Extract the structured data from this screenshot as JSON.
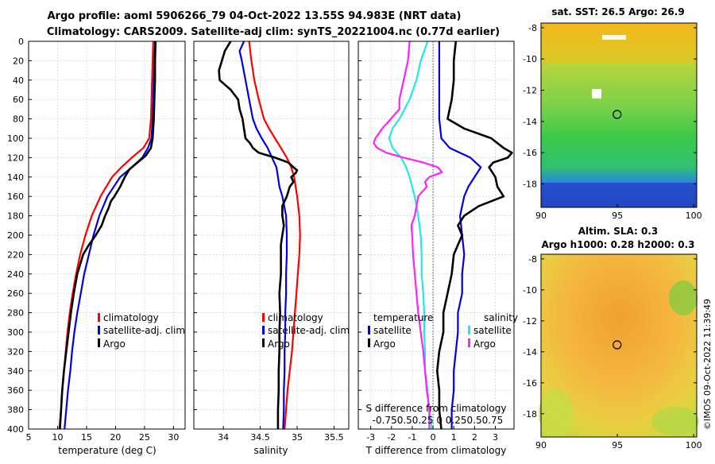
{
  "title": {
    "line1": "Argo profile: aoml 5906266_79 04-Oct-2022 13.55S 94.983E (NRT data)",
    "line2": "Climatology: CARS2009. Satellite-adj clim: synTS_20221004.nc (0.77d earlier)"
  },
  "colors": {
    "climatology": "#ff0000",
    "satellite": "#0000e0",
    "argo": "#000000",
    "t_sat_diff": "#22e8e8",
    "s_sat_diff": "#ee22ee",
    "s_argo_diff": "#ff22ff"
  },
  "depth_ticks": [
    "0",
    "20",
    "40",
    "60",
    "80",
    "100",
    "120",
    "140",
    "160",
    "180",
    "200",
    "220",
    "240",
    "260",
    "280",
    "300",
    "320",
    "340",
    "360",
    "380",
    "400"
  ],
  "chart_data": [
    {
      "id": "temperature",
      "type": "line",
      "xlabel": "temperature (deg C)",
      "ylabel": "depth",
      "xlim": [
        5,
        32
      ],
      "ylim": [
        400,
        0
      ],
      "xticks": [
        "5",
        "10",
        "15",
        "20",
        "25",
        "30"
      ],
      "xtick_values": [
        5,
        10,
        15,
        20,
        25,
        30
      ],
      "grid": true,
      "legend": [
        "climatology",
        "satellite-adj. clim",
        "Argo"
      ],
      "series": [
        {
          "name": "climatology",
          "color": "#ff0000",
          "depth": [
            0,
            20,
            40,
            60,
            80,
            100,
            110,
            120,
            130,
            140,
            160,
            180,
            200,
            220,
            240,
            260,
            280,
            300,
            320,
            340,
            360,
            380,
            400
          ],
          "values": [
            26.5,
            26.4,
            26.3,
            26.2,
            26.1,
            25.8,
            24.8,
            22.8,
            21.0,
            19.4,
            17.4,
            15.9,
            14.8,
            13.9,
            13.2,
            12.6,
            12.1,
            11.7,
            11.4,
            11.1,
            10.8,
            10.6,
            10.3
          ]
        },
        {
          "name": "satellite-adj. clim",
          "color": "#0000e0",
          "depth": [
            0,
            20,
            40,
            60,
            80,
            100,
            110,
            120,
            130,
            140,
            160,
            180,
            200,
            220,
            240,
            260,
            280,
            300,
            320,
            340,
            360,
            380,
            400
          ],
          "values": [
            26.8,
            26.7,
            26.6,
            26.5,
            26.4,
            26.2,
            25.6,
            24.6,
            22.8,
            20.8,
            18.6,
            17.2,
            16.2,
            15.4,
            14.6,
            14.0,
            13.4,
            12.9,
            12.5,
            12.2,
            11.8,
            11.5,
            11.2
          ]
        },
        {
          "name": "Argo",
          "color": "#000000",
          "depth": [
            0,
            20,
            40,
            60,
            80,
            100,
            110,
            118,
            125,
            132,
            140,
            150,
            160,
            165,
            172,
            180,
            190,
            200,
            210,
            220,
            240,
            260,
            280,
            300,
            320,
            340,
            360,
            380,
            400
          ],
          "values": [
            26.9,
            26.8,
            26.8,
            26.7,
            26.6,
            26.4,
            26.1,
            25.2,
            23.8,
            22.4,
            21.6,
            20.8,
            19.8,
            19.2,
            18.8,
            18.2,
            17.6,
            16.6,
            15.4,
            14.4,
            13.4,
            12.8,
            12.3,
            11.9,
            11.5,
            11.1,
            10.8,
            10.6,
            10.4
          ]
        }
      ]
    },
    {
      "id": "salinity",
      "type": "line",
      "xlabel": "salinity",
      "ylabel": "depth",
      "xlim": [
        33.6,
        35.7
      ],
      "ylim": [
        400,
        0
      ],
      "xticks": [
        "34",
        "34.5",
        "35",
        "35.5"
      ],
      "xtick_values": [
        34,
        34.5,
        35,
        35.5
      ],
      "grid": true,
      "legend": [
        "climatology",
        "satellite-adj. clim",
        "Argo"
      ],
      "series": [
        {
          "name": "climatology",
          "color": "#ff0000",
          "depth": [
            0,
            20,
            40,
            60,
            80,
            90,
            100,
            110,
            120,
            130,
            140,
            160,
            180,
            200,
            220,
            240,
            260,
            280,
            300,
            320,
            340,
            360,
            380,
            400
          ],
          "values": [
            34.35,
            34.38,
            34.42,
            34.48,
            34.55,
            34.62,
            34.7,
            34.78,
            34.86,
            34.92,
            34.96,
            35.0,
            35.03,
            35.04,
            35.03,
            35.01,
            34.99,
            34.97,
            34.95,
            34.93,
            34.9,
            34.87,
            34.85,
            34.83
          ]
        },
        {
          "name": "satellite-adj. clim",
          "color": "#0000e0",
          "depth": [
            0,
            10,
            20,
            40,
            60,
            80,
            90,
            100,
            110,
            120,
            130,
            140,
            150,
            160,
            180,
            200,
            220,
            240,
            260,
            280,
            300,
            320,
            340,
            360,
            380,
            400
          ],
          "values": [
            34.28,
            34.22,
            34.25,
            34.3,
            34.35,
            34.4,
            34.45,
            34.52,
            34.6,
            34.66,
            34.72,
            34.74,
            34.76,
            34.8,
            34.85,
            34.86,
            34.86,
            34.85,
            34.85,
            34.84,
            34.84,
            34.83,
            34.83,
            34.82,
            34.82,
            34.81
          ]
        },
        {
          "name": "Argo",
          "color": "#000000",
          "depth": [
            0,
            10,
            20,
            30,
            40,
            50,
            60,
            70,
            80,
            90,
            100,
            105,
            110,
            115,
            120,
            125,
            130,
            133,
            136,
            140,
            145,
            150,
            160,
            170,
            180,
            190,
            200,
            210,
            220,
            240,
            260,
            280,
            300,
            320,
            340,
            360,
            380,
            400
          ],
          "values": [
            34.1,
            34.02,
            33.98,
            33.94,
            33.95,
            34.1,
            34.2,
            34.22,
            34.26,
            34.28,
            34.3,
            34.36,
            34.4,
            34.48,
            34.7,
            34.88,
            34.95,
            35.0,
            34.98,
            34.92,
            34.95,
            34.9,
            34.86,
            34.8,
            34.8,
            34.82,
            34.8,
            34.78,
            34.78,
            34.78,
            34.76,
            34.77,
            34.76,
            34.76,
            34.75,
            34.75,
            34.74,
            34.74
          ]
        }
      ]
    },
    {
      "id": "differences",
      "type": "line",
      "xlabel": "T difference from climatology",
      "xlim": [
        -3.6,
        3.9
      ],
      "ylim": [
        400,
        0
      ],
      "xticks": [
        "-3",
        "-2",
        "-1",
        "0",
        "1",
        "2",
        "3"
      ],
      "xtick_values": [
        -3,
        -2,
        -1,
        0,
        1,
        2,
        3
      ],
      "top_axis_label": "S difference from climatology",
      "top_ticks": "-0.750.50.25 0 0.250.50.75",
      "grid": true,
      "legend_temperature": {
        "title": "temperature",
        "items": [
          "satellite",
          "Argo"
        ]
      },
      "legend_salinity": {
        "title": "salinity",
        "items": [
          "satellite",
          "Argo"
        ]
      },
      "series": [
        {
          "name": "T satellite",
          "color": "#0000e0",
          "depth": [
            0,
            20,
            40,
            60,
            80,
            100,
            110,
            120,
            130,
            140,
            150,
            160,
            180,
            200,
            220,
            240,
            260,
            280,
            300,
            320,
            340,
            360,
            380,
            400
          ],
          "values": [
            0.3,
            0.3,
            0.3,
            0.3,
            0.3,
            0.4,
            0.8,
            1.8,
            2.3,
            2.0,
            1.7,
            1.5,
            1.3,
            1.4,
            1.5,
            1.4,
            1.4,
            1.2,
            1.2,
            1.1,
            1.0,
            1.0,
            0.9,
            0.9
          ]
        },
        {
          "name": "T Argo",
          "color": "#000000",
          "depth": [
            0,
            20,
            40,
            60,
            80,
            90,
            100,
            110,
            115,
            120,
            125,
            130,
            140,
            150,
            160,
            170,
            180,
            190,
            200,
            210,
            220,
            240,
            260,
            280,
            300,
            320,
            340,
            360,
            380,
            400
          ],
          "values": [
            1.1,
            1.0,
            1.0,
            0.9,
            0.7,
            1.5,
            2.8,
            3.4,
            3.8,
            3.6,
            2.9,
            2.7,
            3.0,
            3.1,
            3.4,
            2.2,
            1.5,
            1.2,
            1.4,
            1.2,
            1.0,
            0.9,
            0.7,
            0.5,
            0.5,
            0.3,
            0.2,
            0.3,
            0.3,
            0.4
          ]
        },
        {
          "name": "S satellite",
          "color": "#22e8e8",
          "depth": [
            0,
            20,
            40,
            60,
            80,
            90,
            100,
            110,
            120,
            130,
            140,
            150,
            160,
            180,
            200,
            220,
            240,
            260,
            280,
            300,
            320,
            340,
            360,
            380,
            400
          ],
          "values": [
            -0.07,
            -0.15,
            -0.2,
            -0.28,
            -0.4,
            -0.48,
            -0.52,
            -0.48,
            -0.38,
            -0.32,
            -0.28,
            -0.25,
            -0.22,
            -0.18,
            -0.15,
            -0.14,
            -0.14,
            -0.12,
            -0.11,
            -0.11,
            -0.1,
            -0.1,
            -0.07,
            -0.05,
            -0.02
          ]
        },
        {
          "name": "S Argo",
          "color": "#ff22ff",
          "depth": [
            0,
            20,
            40,
            60,
            70,
            80,
            90,
            100,
            105,
            110,
            115,
            120,
            125,
            130,
            135,
            140,
            145,
            150,
            160,
            170,
            180,
            190,
            200,
            220,
            240,
            260,
            280,
            300,
            320,
            340,
            360,
            380,
            400
          ],
          "values": [
            -0.28,
            -0.3,
            -0.35,
            -0.4,
            -0.4,
            -0.5,
            -0.6,
            -0.68,
            -0.7,
            -0.66,
            -0.55,
            -0.35,
            -0.12,
            0.05,
            0.1,
            -0.05,
            -0.1,
            -0.08,
            -0.18,
            -0.2,
            -0.22,
            -0.26,
            -0.25,
            -0.24,
            -0.22,
            -0.2,
            -0.18,
            -0.15,
            -0.12,
            -0.1,
            -0.08,
            -0.05,
            -0.05
          ]
        }
      ]
    }
  ],
  "maps": {
    "sst": {
      "title": "sat. SST: 26.5 Argo: 26.9",
      "yticks": [
        "-8",
        "-10",
        "-12",
        "-14",
        "-16",
        "-18"
      ],
      "ytick_values": [
        -8,
        -10,
        -12,
        -14,
        -16,
        -18
      ],
      "xticks": [
        "90",
        "95",
        "100"
      ],
      "xtick_values": [
        90,
        95,
        100
      ],
      "lon_range": [
        90,
        100.2
      ],
      "lat_range": [
        -19.5,
        -7.7
      ],
      "marker": {
        "lon": 94.983,
        "lat": -13.55
      }
    },
    "sla": {
      "title1": "Altim. SLA: 0.3",
      "title2": "Argo h1000: 0.28 h2000: 0.3",
      "yticks": [
        "-8",
        "-10",
        "-12",
        "-14",
        "-16",
        "-18"
      ],
      "ytick_values": [
        -8,
        -10,
        -12,
        -14,
        -16,
        -18
      ],
      "xticks": [
        "90",
        "95",
        "100"
      ],
      "xtick_values": [
        90,
        95,
        100
      ],
      "lon_range": [
        90,
        100.2
      ],
      "lat_range": [
        -19.5,
        -7.7
      ],
      "marker": {
        "lon": 94.983,
        "lat": -13.55
      }
    }
  },
  "watermark": "©IMOS 09-Oct-2022 11:39:49"
}
